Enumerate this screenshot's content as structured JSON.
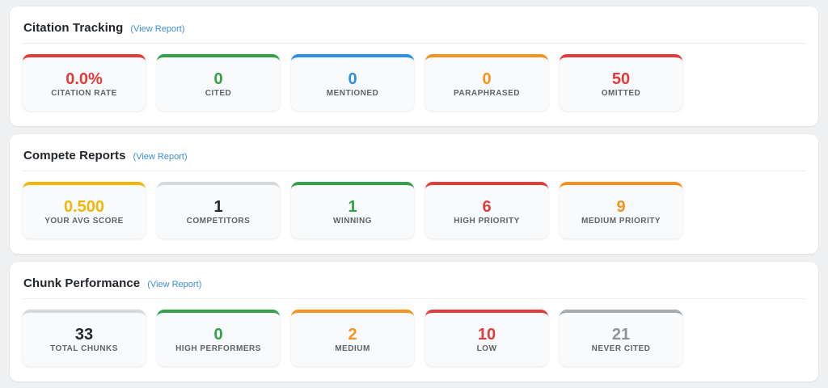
{
  "colors": {
    "red": "#e13c3c",
    "green": "#34a047",
    "blue": "#2b8fe3",
    "orange": "#f6921e",
    "yellow": "#f2b705",
    "silver": "#d5d8dc",
    "gray": "#a6abb0",
    "dark": "#24292e",
    "grayText": "#8e9398",
    "link": "#3e8ed8"
  },
  "sections": [
    {
      "title": "Citation Tracking",
      "link": "(View Report)",
      "cards": [
        {
          "value": "0.0%",
          "label": "CITATION RATE",
          "accent": "red",
          "value_color": "red"
        },
        {
          "value": "0",
          "label": "CITED",
          "accent": "green",
          "value_color": "green"
        },
        {
          "value": "0",
          "label": "MENTIONED",
          "accent": "blue",
          "value_color": "blue"
        },
        {
          "value": "0",
          "label": "PARAPHRASED",
          "accent": "orange",
          "value_color": "orange"
        },
        {
          "value": "50",
          "label": "OMITTED",
          "accent": "red",
          "value_color": "red"
        }
      ]
    },
    {
      "title": "Compete Reports",
      "link": "(View Report)",
      "cards": [
        {
          "value": "0.500",
          "label": "YOUR AVG SCORE",
          "accent": "yellow",
          "value_color": "yellow"
        },
        {
          "value": "1",
          "label": "COMPETITORS",
          "accent": "silver",
          "value_color": "dark"
        },
        {
          "value": "1",
          "label": "WINNING",
          "accent": "green",
          "value_color": "green"
        },
        {
          "value": "6",
          "label": "HIGH PRIORITY",
          "accent": "red",
          "value_color": "red"
        },
        {
          "value": "9",
          "label": "MEDIUM PRIORITY",
          "accent": "orange",
          "value_color": "orange"
        }
      ]
    },
    {
      "title": "Chunk Performance",
      "link": "(View Report)",
      "cards": [
        {
          "value": "33",
          "label": "TOTAL CHUNKS",
          "accent": "silver",
          "value_color": "dark"
        },
        {
          "value": "0",
          "label": "HIGH PERFORMERS",
          "accent": "green",
          "value_color": "green"
        },
        {
          "value": "2",
          "label": "MEDIUM",
          "accent": "orange",
          "value_color": "orange"
        },
        {
          "value": "10",
          "label": "LOW",
          "accent": "red",
          "value_color": "red"
        },
        {
          "value": "21",
          "label": "NEVER CITED",
          "accent": "gray",
          "value_color": "grayText"
        }
      ]
    }
  ]
}
